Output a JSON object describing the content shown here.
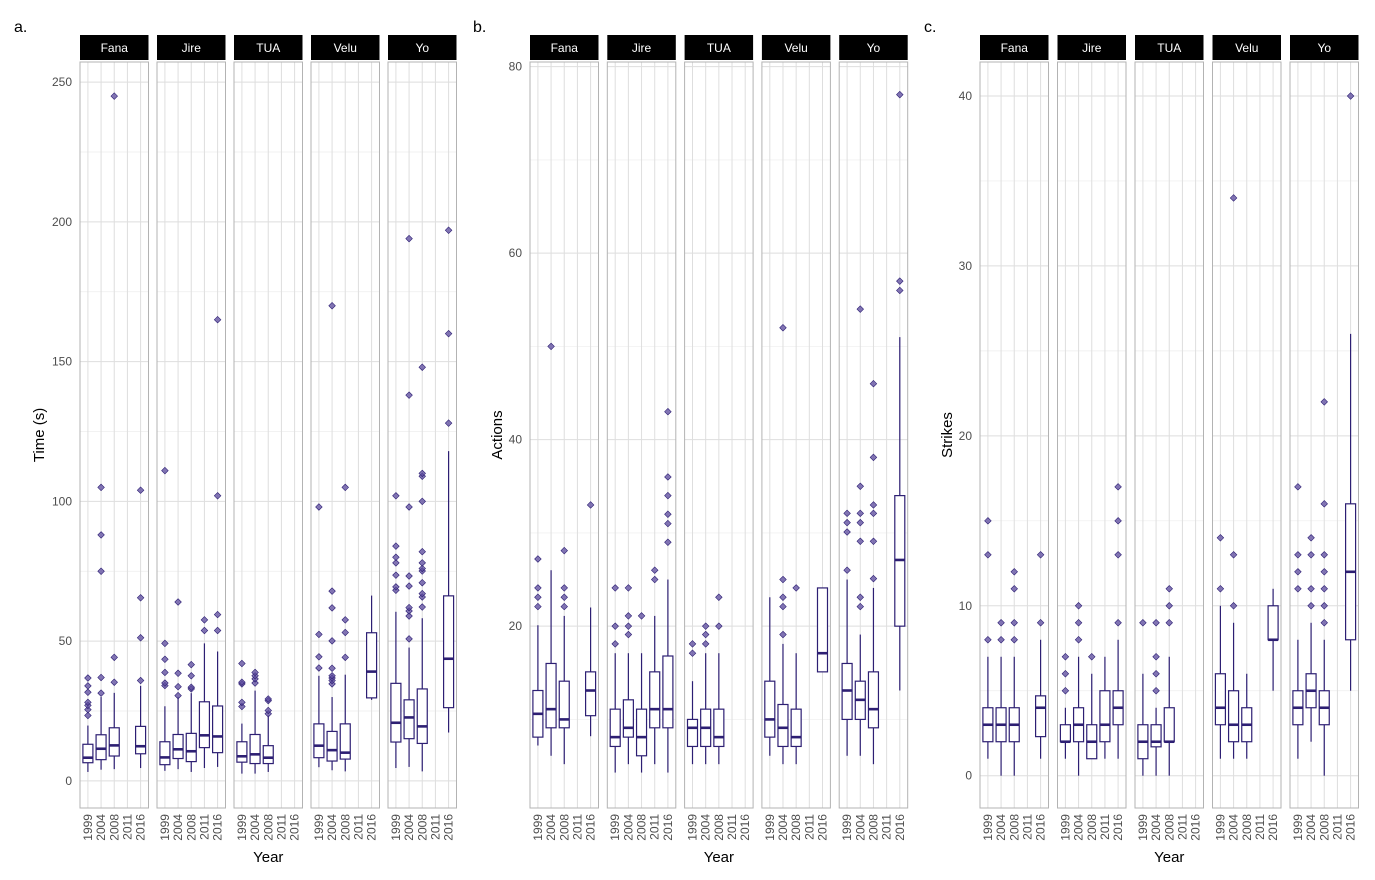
{
  "box_fields": [
    "lower_whisker",
    "q1",
    "median",
    "q3",
    "upper_whisker",
    "outliers"
  ],
  "colors": {
    "box": "#2d1f73",
    "outlier": "#5b4a9e",
    "grid": "#e6e6e6",
    "border": "#b3b3b3",
    "strip": "#000000"
  },
  "chart_data": [
    {
      "type": "box",
      "panel_label": "a.",
      "ylabel": "Time (s)",
      "xlabel": "Year",
      "ylim": [
        -9.7,
        257.2
      ],
      "yticks": [
        0,
        50,
        100,
        150,
        200,
        250
      ],
      "ytick_labels": [
        "0",
        "50",
        "100",
        "150",
        "200",
        "250"
      ],
      "categories": [
        "1999",
        "2004",
        "2008",
        "2011",
        "2016"
      ],
      "facets": [
        {
          "name": "Fana",
          "boxes": [
            [
              3.2,
              6.5,
              8.3,
              13.1,
              19.8,
              [
                23.4,
                25.5,
                27,
                28.1,
                31.7,
                34,
                36.8
              ]
            ],
            [
              4,
              7.6,
              11.5,
              16.5,
              30,
              [
                31.4,
                37,
                75,
                88,
                105
              ]
            ],
            [
              4.2,
              8.9,
              12.7,
              19,
              31.5,
              [
                35.3,
                44.2,
                245
              ]
            ],
            null,
            [
              4.6,
              9.7,
              12.4,
              19.5,
              34,
              [
                35.9,
                51.2,
                65.5,
                104
              ]
            ]
          ]
        },
        {
          "name": "Jire",
          "boxes": [
            [
              3.6,
              5.8,
              8.4,
              14,
              26.7,
              [
                34.1,
                35,
                38.8,
                43.5,
                49.2,
                111
              ]
            ],
            [
              4.2,
              8,
              11.3,
              16.6,
              30,
              [
                30.5,
                33.7,
                38.5,
                64
              ]
            ],
            [
              3.2,
              6.9,
              10.6,
              17,
              31.4,
              [
                32.9,
                33.5,
                37.6,
                41.6
              ]
            ],
            [
              4.6,
              11.9,
              16.3,
              28.3,
              49.2,
              [
                53.8,
                57.6
              ]
            ],
            [
              5,
              10.1,
              15.9,
              26.8,
              46.3,
              [
                53.8,
                59.5,
                102,
                165
              ]
            ]
          ]
        },
        {
          "name": "TUA",
          "boxes": [
            [
              2.6,
              6.7,
              8.8,
              14,
              20.5,
              [
                26.6,
                28.1,
                34.7,
                35.3,
                42
              ]
            ],
            [
              2.6,
              6.2,
              9.5,
              16.6,
              32.3,
              [
                35,
                36.5,
                37.6,
                38.8
              ]
            ],
            [
              3.2,
              6.2,
              8.3,
              12.6,
              23.4,
              [
                24,
                25.2,
                28.7,
                29.3
              ]
            ],
            null,
            null
          ]
        },
        {
          "name": "Velu",
          "boxes": [
            [
              4.9,
              8.3,
              12.6,
              20.4,
              37.6,
              [
                40.4,
                44.4,
                52.4,
                98
              ]
            ],
            [
              3.8,
              7.1,
              11,
              17.7,
              30,
              [
                34.7,
                35.9,
                36.8,
                37.6,
                40.3,
                50.1,
                61.9,
                67.9,
                170
              ]
            ],
            [
              3.4,
              7.8,
              10.1,
              20.4,
              38,
              [
                44.2,
                53.1,
                57.6,
                105
              ]
            ],
            null,
            [
              29,
              29.7,
              39.1,
              53,
              66.3,
              []
            ]
          ]
        },
        {
          "name": "Yo",
          "boxes": [
            [
              4.6,
              13.9,
              20.8,
              34.9,
              60.5,
              [
                68.2,
                69.4,
                73.6,
                78,
                80,
                84,
                102
              ]
            ],
            [
              5,
              15.1,
              22.7,
              29,
              47.7,
              [
                50.8,
                59,
                60.8,
                62,
                69.7,
                73.3,
                98,
                138,
                194
              ]
            ],
            [
              3.4,
              13.4,
              19.5,
              32.9,
              58.2,
              [
                62.2,
                65.8,
                67,
                70.9,
                75.1,
                76,
                78,
                82,
                100,
                109,
                110,
                148
              ]
            ],
            null,
            [
              17.3,
              26.2,
              43.7,
              66.2,
              118,
              [
                128,
                160,
                197
              ]
            ]
          ]
        }
      ]
    },
    {
      "type": "box",
      "panel_label": "b.",
      "ylabel": "Actions",
      "xlabel": "Year",
      "ylim": [
        0.5,
        80.5
      ],
      "yticks": [
        20,
        40,
        60,
        80
      ],
      "ytick_labels": [
        "20",
        "40",
        "60",
        "80"
      ],
      "categories": [
        "1999",
        "2004",
        "2008",
        "2011",
        "2016"
      ],
      "facets": [
        {
          "name": "Fana",
          "boxes": [
            [
              7.2,
              8.1,
              10.6,
              13.1,
              20.1,
              [
                22.1,
                23.1,
                24.1,
                27.2
              ]
            ],
            [
              6.1,
              9.1,
              11.1,
              16,
              26,
              [
                50
              ]
            ],
            [
              5.2,
              9.1,
              10,
              14.1,
              21.1,
              [
                22.1,
                23.1,
                24.1,
                28.1
              ]
            ],
            null,
            [
              8.2,
              10.4,
              13.1,
              15.1,
              22,
              [
                33
              ]
            ]
          ]
        },
        {
          "name": "Jire",
          "boxes": [
            [
              4.3,
              7.1,
              8.1,
              11.1,
              17.1,
              [
                18.1,
                20,
                24.1
              ]
            ],
            [
              5.2,
              8.1,
              9.1,
              12.1,
              17.1,
              [
                19.1,
                20,
                21.1,
                24.1
              ]
            ],
            [
              4.3,
              6.1,
              8.1,
              11.1,
              17.1,
              [
                21.1
              ]
            ],
            [
              5.2,
              9.1,
              11.1,
              15.1,
              21.1,
              [
                25,
                26
              ]
            ],
            [
              4.3,
              9.1,
              11.1,
              16.8,
              25,
              [
                29,
                31,
                32,
                34,
                36,
                43
              ]
            ]
          ]
        },
        {
          "name": "TUA",
          "boxes": [
            [
              5.2,
              7.1,
              9.1,
              10,
              14.1,
              [
                17.1,
                18.1
              ]
            ],
            [
              5.2,
              7.1,
              9.1,
              11.1,
              17.1,
              [
                18.1,
                19.1,
                20
              ]
            ],
            [
              5.2,
              7.1,
              8.1,
              11.1,
              17.1,
              [
                20,
                23.1
              ]
            ],
            null,
            null
          ]
        },
        {
          "name": "Velu",
          "boxes": [
            [
              6.1,
              8.1,
              10,
              14.1,
              23.1,
              []
            ],
            [
              5.2,
              7.1,
              9.1,
              11.6,
              18.1,
              [
                19.1,
                22.1,
                23.1,
                25,
                52
              ]
            ],
            [
              5.2,
              7.1,
              8.1,
              11.1,
              17.1,
              [
                24.1
              ]
            ],
            null,
            [
              15.1,
              15.1,
              17.1,
              24.1,
              24.1,
              []
            ]
          ]
        },
        {
          "name": "Yo",
          "boxes": [
            [
              6.1,
              10,
              13.1,
              16,
              25,
              [
                26,
                30.1,
                31.1,
                32.1
              ]
            ],
            [
              6.1,
              10,
              12.1,
              14.1,
              19.1,
              [
                22.1,
                23.1,
                29.1,
                31.1,
                32.1,
                35,
                54
              ]
            ],
            [
              5.2,
              9.1,
              11.1,
              15.1,
              24.1,
              [
                25.1,
                29.1,
                32.1,
                33,
                38.1,
                46
              ]
            ],
            null,
            [
              13.1,
              20,
              27.1,
              34,
              51,
              [
                56,
                57,
                77
              ]
            ]
          ]
        }
      ]
    },
    {
      "type": "box",
      "panel_label": "c.",
      "ylabel": "Strikes",
      "xlabel": "Year",
      "ylim": [
        -1.9,
        42
      ],
      "yticks": [
        0,
        10,
        20,
        30,
        40
      ],
      "ytick_labels": [
        "0",
        "10",
        "20",
        "30",
        "40"
      ],
      "categories": [
        "1999",
        "2004",
        "2008",
        "2011",
        "2016"
      ],
      "facets": [
        {
          "name": "Fana",
          "boxes": [
            [
              1,
              2,
              3,
              4,
              7,
              [
                8,
                13,
                15
              ]
            ],
            [
              0,
              2,
              3,
              4,
              7,
              [
                8,
                9
              ]
            ],
            [
              0,
              2,
              3,
              4,
              7,
              [
                8,
                9,
                11,
                12
              ]
            ],
            null,
            [
              1,
              2.3,
              4,
              4.7,
              8,
              [
                9,
                13
              ]
            ]
          ]
        },
        {
          "name": "Jire",
          "boxes": [
            [
              1,
              2,
              2,
              3,
              4,
              [
                5,
                6,
                7
              ]
            ],
            [
              0,
              2,
              3,
              4,
              7,
              [
                8,
                9,
                10
              ]
            ],
            [
              1,
              1,
              2,
              3,
              6,
              [
                7
              ]
            ],
            [
              1,
              2,
              3,
              5,
              7,
              []
            ],
            [
              1,
              3,
              4,
              5,
              8,
              [
                9,
                13,
                15,
                17
              ]
            ]
          ]
        },
        {
          "name": "TUA",
          "boxes": [
            [
              0,
              1,
              2,
              3,
              6,
              [
                9
              ]
            ],
            [
              0,
              1.7,
              2,
              3,
              4,
              [
                5,
                6,
                7,
                9
              ]
            ],
            [
              0,
              2,
              2,
              4,
              7,
              [
                9,
                10,
                11
              ]
            ],
            null,
            null
          ]
        },
        {
          "name": "Velu",
          "boxes": [
            [
              1,
              3,
              4,
              6,
              10,
              [
                11,
                14
              ]
            ],
            [
              1,
              2,
              3,
              5,
              9,
              [
                10,
                13,
                34
              ]
            ],
            [
              1,
              2,
              3,
              4,
              6,
              []
            ],
            null,
            [
              5,
              8,
              8,
              10,
              11,
              []
            ]
          ]
        },
        {
          "name": "Yo",
          "boxes": [
            [
              1,
              3,
              4,
              5,
              8,
              [
                11,
                12,
                13,
                17
              ]
            ],
            [
              2,
              4,
              5,
              6,
              9,
              [
                10,
                11,
                13,
                14
              ]
            ],
            [
              0,
              3,
              4,
              5,
              8,
              [
                9,
                10,
                11,
                12,
                13,
                16,
                22
              ]
            ],
            null,
            [
              5,
              8,
              12,
              16,
              26,
              [
                40
              ]
            ]
          ]
        }
      ]
    }
  ]
}
